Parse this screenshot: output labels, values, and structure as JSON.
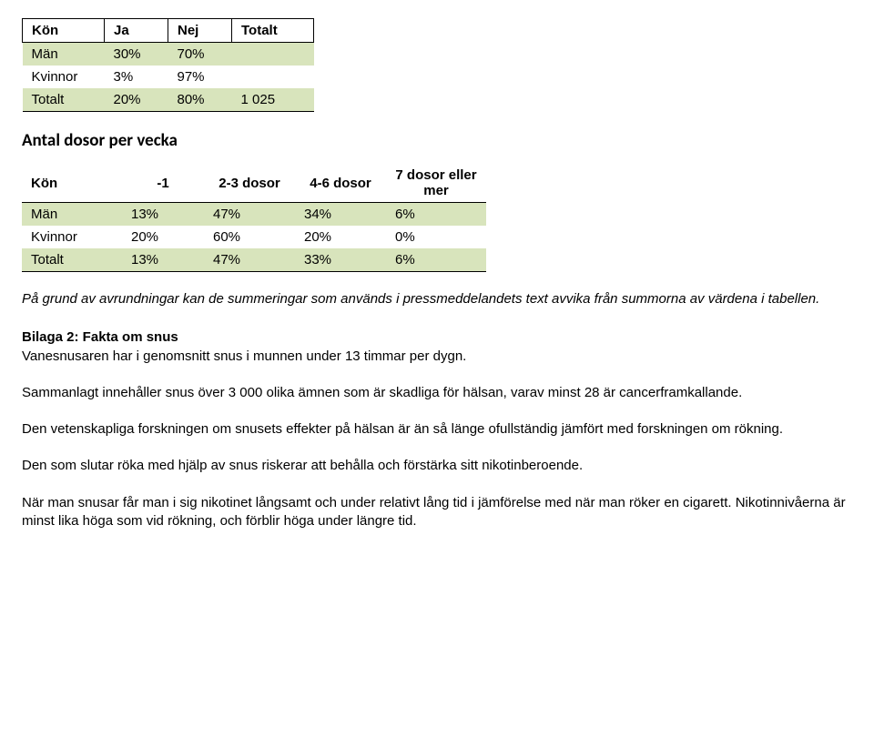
{
  "colors": {
    "shade": "#d8e4bc",
    "border": "#000000",
    "text": "#000000",
    "background": "#ffffff"
  },
  "table1": {
    "headers": [
      "Kön",
      "Ja",
      "Nej",
      "Totalt"
    ],
    "rows": [
      [
        "Män",
        "30%",
        "70%",
        ""
      ],
      [
        "Kvinnor",
        "3%",
        "97%",
        ""
      ],
      [
        "Totalt",
        "20%",
        "80%",
        "1 025"
      ]
    ]
  },
  "section_heading": "Antal dosor per vecka",
  "table2": {
    "headers": [
      "Kön",
      "-1",
      "2-3 dosor",
      "4-6 dosor",
      "7 dosor eller mer"
    ],
    "rows": [
      [
        "Män",
        "13%",
        "47%",
        "34%",
        "6%"
      ],
      [
        "Kvinnor",
        "20%",
        "60%",
        "20%",
        "0%"
      ],
      [
        "Totalt",
        "13%",
        "47%",
        "33%",
        "6%"
      ]
    ]
  },
  "note": "På grund av avrundningar kan de summeringar som används i pressmeddelandets text avvika från summorna av värdena i tabellen.",
  "bilaga_heading": "Bilaga 2: Fakta om snus",
  "paragraphs": {
    "p1": "Vanesnusaren har i genomsnitt snus i munnen under 13 timmar per dygn.",
    "p2": "Sammanlagt innehåller snus över 3 000 olika ämnen som är skadliga för hälsan, varav minst 28 är cancerframkallande.",
    "p3": "Den vetenskapliga forskningen om snusets effekter på hälsan är än så länge ofullständig jämfört med forskningen om rökning.",
    "p4": "Den som slutar röka med hjälp av snus riskerar att behålla och förstärka sitt nikotinberoende.",
    "p5": "När man snusar får man i sig nikotinet långsamt och under relativt lång tid i jämförelse med när man röker en cigarett. Nikotinnivåerna är minst lika höga som vid rökning, och förblir höga under längre tid."
  }
}
